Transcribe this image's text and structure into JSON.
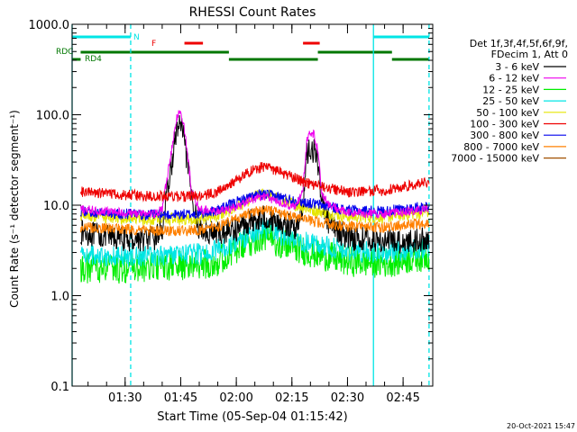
{
  "chart_data": {
    "type": "line",
    "title": "RHESSI Count Rates",
    "xlabel": "Start Time (05-Sep-04 01:15:42)",
    "ylabel": "Count Rate (s⁻¹ detector segment⁻¹)",
    "yscale": "log",
    "ylim": [
      0.1,
      1000
    ],
    "xlim": [
      "01:15:42",
      "02:53:00"
    ],
    "x_ticks": [
      "01:30",
      "01:45",
      "02:00",
      "02:15",
      "02:30",
      "02:45"
    ],
    "y_ticks": [
      "0.1",
      "1.0",
      "10.0",
      "100.0",
      "1000.0"
    ],
    "legend_header": [
      "Det 1f,3f,4f,5f,6f,9f,",
      "FDecim 1, Att 0"
    ],
    "legend_position": "right",
    "timestamp": "20-Oct-2021 15:47",
    "flags": [
      {
        "label": "N",
        "color": "#00e5e5",
        "intervals": [
          [
            "01:15:42",
            "01:31:30"
          ],
          [
            "02:37:00",
            "02:52:00"
          ]
        ]
      },
      {
        "label": "F",
        "color": "#ee0000",
        "intervals": [
          [
            "01:46:00",
            "01:51:00"
          ],
          [
            "02:18:00",
            "02:22:30"
          ]
        ]
      },
      {
        "label": "RDC",
        "color": "#007700",
        "intervals": [
          [
            "01:18:00",
            "01:58:00"
          ],
          [
            "02:22:00",
            "02:42:00"
          ]
        ]
      },
      {
        "label": "RD4",
        "color": "#007700",
        "intervals": [
          [
            "01:15:42",
            "01:18:00"
          ],
          [
            "01:58:00",
            "02:22:00"
          ],
          [
            "02:42:00",
            "02:52:00"
          ]
        ]
      }
    ],
    "vlines": [
      {
        "time": "01:15:42",
        "style": "solid",
        "color": "#00e5e5"
      },
      {
        "time": "01:31:30",
        "style": "dashed",
        "color": "#00e5e5"
      },
      {
        "time": "02:37:00",
        "style": "solid",
        "color": "#00e5e5"
      },
      {
        "time": "02:52:00",
        "style": "dashed",
        "color": "#00e5e5"
      }
    ],
    "series": [
      {
        "name": "3 - 6 keV",
        "color": "#000000",
        "noise": 0.14,
        "x": [
          "01:18",
          "01:25",
          "01:30",
          "01:38",
          "01:40",
          "01:42",
          "01:44",
          "01:45",
          "01:46",
          "01:48",
          "01:50",
          "01:55",
          "02:00",
          "02:05",
          "02:08",
          "02:12",
          "02:16",
          "02:18",
          "02:19",
          "02:20",
          "02:21",
          "02:22",
          "02:23",
          "02:25",
          "02:30",
          "02:40",
          "02:45",
          "02:52"
        ],
        "y": [
          5.0,
          4.5,
          4.2,
          4.3,
          5.5,
          20,
          70,
          80,
          50,
          12,
          5.5,
          4.8,
          5.5,
          7,
          7.5,
          6.5,
          5.5,
          10,
          35,
          42,
          40,
          30,
          12,
          6,
          4.5,
          4.0,
          4.0,
          4.2
        ]
      },
      {
        "name": "6 - 12 keV",
        "color": "#ee00ee",
        "noise": 0.05,
        "x": [
          "01:18",
          "01:30",
          "01:38",
          "01:40",
          "01:42",
          "01:44",
          "01:45",
          "01:46",
          "01:48",
          "01:50",
          "01:55",
          "02:00",
          "02:05",
          "02:08",
          "02:12",
          "02:16",
          "02:18",
          "02:19",
          "02:20",
          "02:21",
          "02:22",
          "02:23",
          "02:25",
          "02:30",
          "02:40",
          "02:52"
        ],
        "y": [
          9.0,
          8.2,
          8.0,
          9,
          30,
          95,
          110,
          70,
          14,
          9,
          8.5,
          9.5,
          12,
          12.5,
          10.5,
          9.5,
          15,
          50,
          65,
          60,
          40,
          14,
          10,
          8.2,
          8.0,
          9.0
        ]
      },
      {
        "name": "12 - 25 keV",
        "color": "#00ee00",
        "noise": 0.17,
        "x": [
          "01:18",
          "01:30",
          "01:40",
          "01:50",
          "01:55",
          "02:00",
          "02:05",
          "02:08",
          "02:12",
          "02:20",
          "02:30",
          "02:40",
          "02:52"
        ],
        "y": [
          2.0,
          2.0,
          2.1,
          2.2,
          2.4,
          3.2,
          4.2,
          4.5,
          3.8,
          3.0,
          2.4,
          2.3,
          2.8
        ]
      },
      {
        "name": "25 - 50 keV",
        "color": "#00e5e5",
        "noise": 0.12,
        "x": [
          "01:18",
          "01:30",
          "01:40",
          "01:50",
          "01:55",
          "02:00",
          "02:05",
          "02:08",
          "02:12",
          "02:20",
          "02:30",
          "02:40",
          "02:52"
        ],
        "y": [
          2.9,
          2.7,
          2.8,
          2.9,
          3.2,
          4.0,
          5.0,
          5.4,
          4.7,
          3.8,
          3.1,
          3.0,
          3.4
        ]
      },
      {
        "name": "50 - 100 keV",
        "color": "#e5e500",
        "noise": 0.07,
        "x": [
          "01:18",
          "01:30",
          "01:40",
          "01:50",
          "01:55",
          "02:00",
          "02:05",
          "02:08",
          "02:12",
          "02:20",
          "02:30",
          "02:40",
          "02:52"
        ],
        "y": [
          7.8,
          7.2,
          7.0,
          7.1,
          7.6,
          9.5,
          12.5,
          13.5,
          11.5,
          9.0,
          7.5,
          7.4,
          8.5
        ]
      },
      {
        "name": "100 - 300 keV",
        "color": "#ee0000",
        "noise": 0.06,
        "x": [
          "01:18",
          "01:30",
          "01:40",
          "01:50",
          "01:55",
          "02:00",
          "02:05",
          "02:08",
          "02:12",
          "02:20",
          "02:30",
          "02:40",
          "02:52"
        ],
        "y": [
          14,
          13,
          12.5,
          12.5,
          14,
          19,
          25,
          27,
          23,
          17,
          14,
          14.5,
          18
        ]
      },
      {
        "name": "300 - 800 keV",
        "color": "#0000ee",
        "noise": 0.06,
        "x": [
          "01:18",
          "01:30",
          "01:40",
          "01:50",
          "01:55",
          "02:00",
          "02:05",
          "02:08",
          "02:12",
          "02:20",
          "02:30",
          "02:40",
          "02:52"
        ],
        "y": [
          8.5,
          8.0,
          7.8,
          8.0,
          8.8,
          10.8,
          12.8,
          13.2,
          12.2,
          10.5,
          8.8,
          8.6,
          9.8
        ]
      },
      {
        "name": "800 - 7000 keV",
        "color": "#ff8000",
        "noise": 0.06,
        "x": [
          "01:18",
          "01:30",
          "01:40",
          "01:50",
          "01:55",
          "02:00",
          "02:05",
          "02:08",
          "02:12",
          "02:20",
          "02:30",
          "02:40",
          "02:52"
        ],
        "y": [
          5.7,
          5.4,
          5.2,
          5.3,
          5.8,
          7.0,
          8.5,
          8.9,
          8.0,
          6.8,
          5.8,
          5.7,
          6.4
        ]
      },
      {
        "name": "7000 - 15000 keV",
        "color": "#a05000",
        "noise": 0.0,
        "x": [],
        "y": []
      }
    ]
  }
}
